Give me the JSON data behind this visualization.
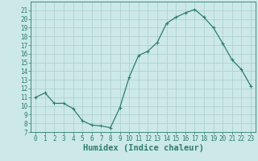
{
  "x": [
    0,
    1,
    2,
    3,
    4,
    5,
    6,
    7,
    8,
    9,
    10,
    11,
    12,
    13,
    14,
    15,
    16,
    17,
    18,
    19,
    20,
    21,
    22,
    23
  ],
  "y": [
    11,
    11.5,
    10.3,
    10.3,
    9.7,
    8.3,
    7.8,
    7.7,
    7.5,
    9.8,
    13.3,
    15.8,
    16.3,
    17.3,
    19.5,
    20.2,
    20.7,
    21.1,
    20.2,
    19.0,
    17.2,
    15.3,
    14.2,
    12.3
  ],
  "line_color": "#2d7d6e",
  "marker": "+",
  "marker_size": 3,
  "marker_linewidth": 0.8,
  "bg_color": "#cce8e8",
  "grid_color": "#aacece",
  "xlabel": "Humidex (Indice chaleur)",
  "xlim": [
    -0.5,
    23.5
  ],
  "ylim": [
    7,
    22
  ],
  "yticks": [
    7,
    8,
    9,
    10,
    11,
    12,
    13,
    14,
    15,
    16,
    17,
    18,
    19,
    20,
    21
  ],
  "xticks": [
    0,
    1,
    2,
    3,
    4,
    5,
    6,
    7,
    8,
    9,
    10,
    11,
    12,
    13,
    14,
    15,
    16,
    17,
    18,
    19,
    20,
    21,
    22,
    23
  ],
  "tick_label_size": 5.5,
  "xlabel_size": 7.5,
  "axis_color": "#2d7d6e",
  "line_width": 0.9
}
